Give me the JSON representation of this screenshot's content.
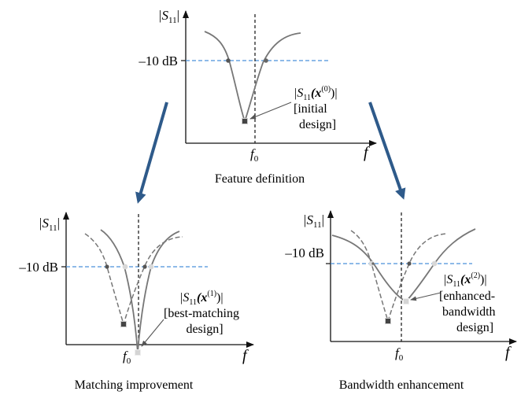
{
  "panels": {
    "top": {
      "y_label_abs": "|S",
      "y_label_sub": "11",
      "y_label_end": "|",
      "level_label": "–10 dB",
      "freq_axis": "f",
      "center_freq_main": "f",
      "center_freq_sub": "0",
      "annot_line1_prefix": "|S",
      "annot_line1_sub": "11",
      "annot_line1_mid": "(x",
      "annot_line1_sup": "(0)",
      "annot_line1_suffix": ")|",
      "annot_line2": "[initial",
      "annot_line3": "design]",
      "caption": "Feature definition"
    },
    "left": {
      "y_label_abs": "|S",
      "y_label_sub": "11",
      "y_label_end": "|",
      "level_label": "–10 dB",
      "freq_axis": "f",
      "center_freq_main": "f",
      "center_freq_sub": "0",
      "annot_line1_prefix": "|S",
      "annot_line1_sub": "11",
      "annot_line1_mid": "(x",
      "annot_line1_sup": "(1)",
      "annot_line1_suffix": ")|",
      "annot_line2": "[best-matching",
      "annot_line3": "design]",
      "caption": "Matching improvement"
    },
    "right": {
      "y_label_abs": "|S",
      "y_label_sub": "11",
      "y_label_end": "|",
      "level_label": "–10 dB",
      "freq_axis": "f",
      "center_freq_main": "f",
      "center_freq_sub": "0",
      "annot_line1_prefix": "|S",
      "annot_line1_sub": "11",
      "annot_line1_mid": "(x",
      "annot_line1_sup": "(2)",
      "annot_line1_suffix": ")|",
      "annot_line2": "[enhanced-",
      "annot_line3": "bandwidth",
      "annot_line4": "design]",
      "caption": "Bandwidth enhancement"
    }
  },
  "colors": {
    "axis": "#111111",
    "curve": "#777777",
    "threshold": "#4a90d9",
    "arrow": "#2e5a8a",
    "dark_marker": "#444444",
    "light_marker": "#d4d4d4"
  }
}
